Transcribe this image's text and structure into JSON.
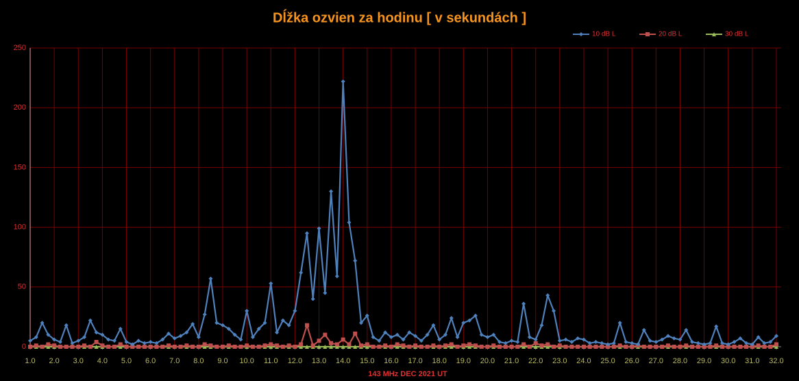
{
  "chart_data": {
    "type": "line",
    "title": "Dĺžka ozvien za hodinu [ v sekundách ]",
    "x_label": "143 MHz DEC  2021  UT",
    "xlim": [
      1,
      32.2
    ],
    "ylim": [
      0,
      250
    ],
    "yticks": [
      0,
      50,
      100,
      150,
      200,
      250
    ],
    "xticks": [
      {
        "value": 1,
        "label": "1.0"
      },
      {
        "value": 2,
        "label": "2.0"
      },
      {
        "value": 3,
        "label": "3.0"
      },
      {
        "value": 4,
        "label": "4.0"
      },
      {
        "value": 5,
        "label": "5.0"
      },
      {
        "value": 6,
        "label": "6.0"
      },
      {
        "value": 7,
        "label": "7.0"
      },
      {
        "value": 8,
        "label": "8.0"
      },
      {
        "value": 9,
        "label": "9.0"
      },
      {
        "value": 10,
        "label": "10.0"
      },
      {
        "value": 11,
        "label": "11.0"
      },
      {
        "value": 12,
        "label": "12.0"
      },
      {
        "value": 13,
        "label": "13.0"
      },
      {
        "value": 14,
        "label": "14.0"
      },
      {
        "value": 15,
        "label": "15.0"
      },
      {
        "value": 16,
        "label": "16.0"
      },
      {
        "value": 17,
        "label": "17.0"
      },
      {
        "value": 18,
        "label": "18.0"
      },
      {
        "value": 19,
        "label": "19.0"
      },
      {
        "value": 20,
        "label": "20.0"
      },
      {
        "value": 21,
        "label": "21.0"
      },
      {
        "value": 22,
        "label": "22.0"
      },
      {
        "value": 23,
        "label": "23.0"
      },
      {
        "value": 24,
        "label": "24.0"
      },
      {
        "value": 25,
        "label": "25.0"
      },
      {
        "value": 26,
        "label": "26.0"
      },
      {
        "value": 27,
        "label": "27.0"
      },
      {
        "value": 28,
        "label": "28.0"
      },
      {
        "value": 29,
        "label": "29.0"
      },
      {
        "value": 30,
        "label": "30.0"
      },
      {
        "value": 31,
        "label": "31.0"
      },
      {
        "value": 32,
        "label": "32.0"
      }
    ],
    "grid": true,
    "legend_position": "top-right",
    "x": [
      1,
      1.25,
      1.5,
      1.75,
      2,
      2.25,
      2.5,
      2.75,
      3,
      3.25,
      3.5,
      3.75,
      4,
      4.25,
      4.5,
      4.75,
      5,
      5.25,
      5.5,
      5.75,
      6,
      6.25,
      6.5,
      6.75,
      7,
      7.25,
      7.5,
      7.75,
      8,
      8.25,
      8.5,
      8.75,
      9,
      9.25,
      9.5,
      9.75,
      10,
      10.25,
      10.5,
      10.75,
      11,
      11.25,
      11.5,
      11.75,
      12,
      12.25,
      12.5,
      12.75,
      13,
      13.25,
      13.5,
      13.75,
      14,
      14.25,
      14.5,
      14.75,
      15,
      15.25,
      15.5,
      15.75,
      16,
      16.25,
      16.5,
      16.75,
      17,
      17.25,
      17.5,
      17.75,
      18,
      18.25,
      18.5,
      18.75,
      19,
      19.25,
      19.5,
      19.75,
      20,
      20.25,
      20.5,
      20.75,
      21,
      21.25,
      21.5,
      21.75,
      22,
      22.25,
      22.5,
      22.75,
      23,
      23.25,
      23.5,
      23.75,
      24,
      24.25,
      24.5,
      24.75,
      25,
      25.25,
      25.5,
      25.75,
      26,
      26.25,
      26.5,
      26.75,
      27,
      27.25,
      27.5,
      27.75,
      28,
      28.25,
      28.5,
      28.75,
      29,
      29.25,
      29.5,
      29.75,
      30,
      30.25,
      30.5,
      30.75,
      31,
      31.25,
      31.5,
      31.75,
      32
    ],
    "series": [
      {
        "name": "10 dB L",
        "color": "#4f81bd",
        "marker": "diamond",
        "values": [
          5,
          8,
          20,
          10,
          6,
          4,
          18,
          3,
          5,
          8,
          22,
          12,
          10,
          6,
          5,
          15,
          4,
          2,
          5,
          3,
          4,
          3,
          6,
          11,
          7,
          9,
          12,
          19,
          8,
          27,
          57,
          20,
          18,
          15,
          10,
          6,
          30,
          8,
          15,
          20,
          53,
          12,
          22,
          18,
          30,
          62,
          95,
          40,
          99,
          45,
          130,
          59,
          222,
          104,
          72,
          20,
          26,
          8,
          5,
          12,
          8,
          10,
          6,
          12,
          9,
          5,
          10,
          18,
          6,
          10,
          24,
          8,
          20,
          22,
          26,
          10,
          8,
          10,
          4,
          3,
          5,
          4,
          36,
          8,
          6,
          18,
          43,
          30,
          5,
          6,
          4,
          7,
          6,
          3,
          4,
          3,
          2,
          3,
          20,
          4,
          3,
          2,
          14,
          5,
          4,
          6,
          9,
          7,
          6,
          14,
          4,
          3,
          2,
          3,
          17,
          3,
          2,
          4,
          7,
          3,
          2,
          8,
          3,
          4,
          9
        ]
      },
      {
        "name": "20 dB L",
        "color": "#c0504d",
        "marker": "square",
        "values": [
          0,
          1,
          0,
          2,
          1,
          0,
          0,
          0,
          0,
          1,
          0,
          4,
          1,
          0,
          0,
          2,
          0,
          0,
          0,
          0,
          0,
          0,
          0,
          1,
          0,
          0,
          1,
          0,
          0,
          2,
          1,
          0,
          0,
          1,
          0,
          0,
          1,
          0,
          0,
          1,
          2,
          1,
          0,
          1,
          0,
          2,
          18,
          1,
          5,
          10,
          3,
          2,
          6,
          2,
          11,
          1,
          2,
          0,
          0,
          1,
          0,
          2,
          1,
          0,
          1,
          0,
          0,
          1,
          0,
          1,
          2,
          0,
          1,
          2,
          1,
          0,
          0,
          1,
          0,
          0,
          0,
          0,
          2,
          0,
          3,
          1,
          2,
          0,
          1,
          0,
          0,
          0,
          0,
          0,
          0,
          0,
          0,
          0,
          1,
          0,
          0,
          1,
          0,
          0,
          0,
          0,
          1,
          0,
          0,
          1,
          0,
          0,
          0,
          0,
          1,
          0,
          0,
          0,
          0,
          0,
          0,
          1,
          0,
          0,
          2
        ]
      },
      {
        "name": "30 dB L",
        "color": "#9bbb59",
        "marker": "triangle",
        "values": [
          0,
          0,
          0,
          0,
          0,
          0,
          0,
          0,
          0,
          0,
          0,
          0,
          0,
          0,
          0,
          0,
          0,
          0,
          0,
          0,
          0,
          0,
          0,
          0,
          0,
          0,
          0,
          0,
          0,
          0,
          0,
          0,
          0,
          0,
          0,
          0,
          0,
          0,
          0,
          0,
          0,
          0,
          0,
          0,
          0,
          0,
          0,
          0,
          0,
          0,
          0,
          0,
          0,
          0,
          0,
          0,
          0,
          0,
          0,
          0,
          0,
          0,
          0,
          0,
          0,
          0,
          0,
          0,
          0,
          0,
          0,
          0,
          0,
          0,
          0,
          0,
          0,
          0,
          0,
          0,
          0,
          0,
          0,
          0,
          0,
          0,
          0,
          0,
          0,
          0,
          0,
          0,
          0,
          0,
          0,
          0,
          0,
          0,
          0,
          0,
          0,
          0,
          0,
          0,
          0,
          0,
          0,
          0,
          0,
          0,
          0,
          0,
          0,
          0,
          0,
          0,
          0,
          0,
          0,
          0,
          0,
          0,
          0,
          0,
          0
        ]
      }
    ]
  }
}
